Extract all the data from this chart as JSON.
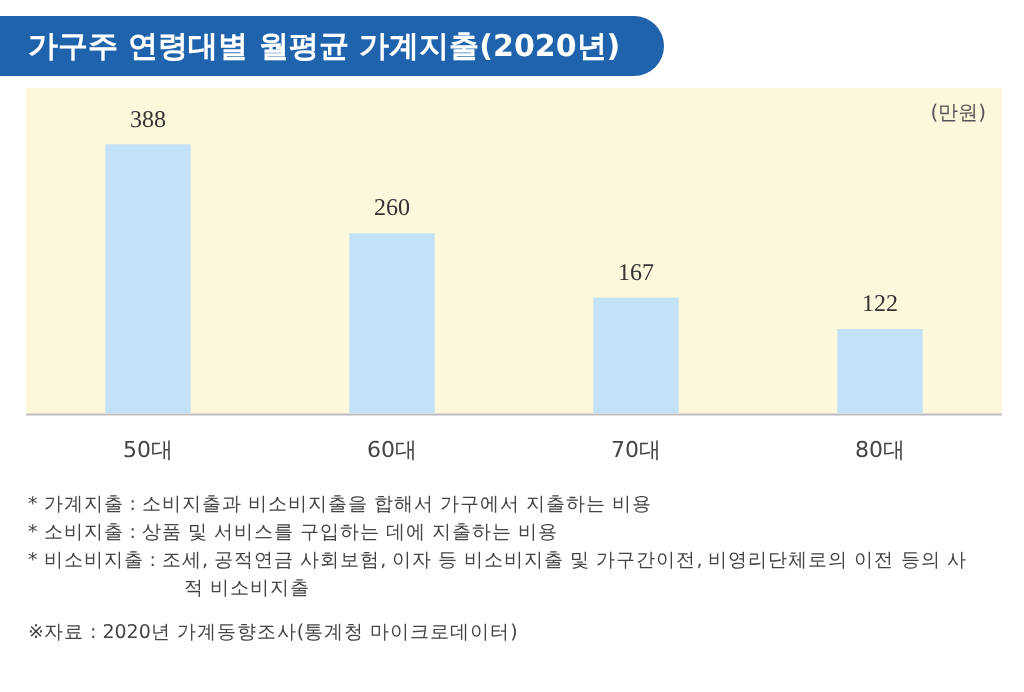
{
  "chart_data": {
    "type": "bar",
    "title": "가구주 연령대별 월평균 가계지출(2020년)",
    "ylabel": "(만원)",
    "categories": [
      "50대",
      "60대",
      "70대",
      "80대"
    ],
    "values": [
      388,
      260,
      167,
      122
    ],
    "color": "#c2e2f7",
    "data_labels": true,
    "grid": false,
    "legend": false,
    "annotations": [
      "* 가계지출 : 소비지출과 비소비지출을 합해서 가구에서 지출하는 비용",
      "* 소비지출 : 상품 및 서비스를 구입하는 데에 지출하는 비용",
      "* 비소비지출 : 조세, 공적연금 사회보험, 이자 등 비소비지출 및 가구간이전, 비영리단체로의 이전 등의 사적 비소비지출",
      "※자료 : 2020년 가계동향조사(통계청 마이크로데이터)"
    ]
  }
}
